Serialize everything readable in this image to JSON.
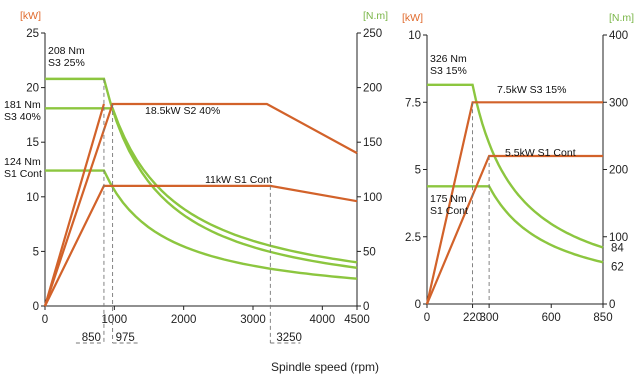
{
  "colors": {
    "power": "#d2622a",
    "torque": "#8cc63f",
    "axis": "#222222",
    "guide": "#777777",
    "kw_unit": "#e06a2c",
    "nm_unit": "#7ab648"
  },
  "xlabel": "Spindle speed (rpm)",
  "chart_data": [
    {
      "type": "line",
      "units": {
        "left": "[kW]",
        "right": "[N.m]"
      },
      "xlim": [
        0,
        4500
      ],
      "ylim_left": [
        0,
        25
      ],
      "ylim_right": [
        0,
        250
      ],
      "x_ticks": [
        "0",
        "1000",
        "2000",
        "3000",
        "4000",
        "4500"
      ],
      "y_left_ticks": [
        "0",
        "5",
        "10",
        "15",
        "20",
        "25"
      ],
      "y_right_ticks": [
        "0",
        "50",
        "100",
        "150",
        "200",
        "250"
      ],
      "marker_labels": [
        "850",
        "975",
        "3250"
      ],
      "annotations": [
        "208 Nm",
        "S3 25%",
        "181 Nm",
        "S3 40%",
        "124 Nm",
        "S1 Cont",
        "18.5kW S2 40%",
        "11kW S1 Cont"
      ],
      "power_series": [
        {
          "label": "18.5kW S2 40%",
          "x": [
            0,
            975,
            3200,
            4500
          ],
          "y": [
            0,
            18.5,
            18.5,
            14
          ]
        },
        {
          "label": "11kW S1 Cont",
          "x": [
            0,
            850,
            3250,
            4500
          ],
          "y": [
            0,
            11,
            11,
            9.6
          ]
        },
        {
          "label": "",
          "x": [
            0,
            850
          ],
          "y": [
            0,
            18.5
          ]
        }
      ],
      "torque_series": [
        {
          "label": "208 Nm S3 25%",
          "x": [
            0,
            850,
            4500
          ],
          "y": [
            208,
            208,
            35
          ]
        },
        {
          "label": "181 Nm S3 40%",
          "x": [
            0,
            975,
            4500
          ],
          "y": [
            181,
            181,
            40
          ]
        },
        {
          "label": "124 Nm S1 Cont",
          "x": [
            0,
            850,
            4500
          ],
          "y": [
            124,
            124,
            25
          ]
        }
      ]
    },
    {
      "type": "line",
      "units": {
        "left": "[kW]",
        "right": "[N.m]"
      },
      "xlim": [
        0,
        850
      ],
      "ylim_left": [
        0,
        10
      ],
      "ylim_right": [
        0,
        400
      ],
      "x_ticks": [
        "0",
        "220",
        "300",
        "600",
        "850"
      ],
      "y_left_ticks": [
        "0",
        "2.5",
        "5",
        "7.5",
        "10"
      ],
      "y_right_ticks": [
        "0",
        "100",
        "200",
        "300",
        "400"
      ],
      "end_labels": [
        "84",
        "62"
      ],
      "annotations": [
        "326 Nm",
        "S3 15%",
        "7.5kW S3 15%",
        "5.5kW S1 Cont",
        "175 Nm",
        "S1 Cont"
      ],
      "power_series": [
        {
          "label": "7.5kW S3 15%",
          "x": [
            0,
            220,
            850
          ],
          "y": [
            0,
            7.5,
            7.5
          ]
        },
        {
          "label": "5.5kW S1 Cont",
          "x": [
            0,
            300,
            850
          ],
          "y": [
            0,
            5.5,
            5.5
          ]
        }
      ],
      "torque_series": [
        {
          "label": "326 Nm S3 15%",
          "x": [
            0,
            220,
            850
          ],
          "y": [
            326,
            326,
            84
          ]
        },
        {
          "label": "175 Nm S1 Cont",
          "x": [
            0,
            300,
            850
          ],
          "y": [
            175,
            175,
            62
          ]
        }
      ]
    }
  ]
}
